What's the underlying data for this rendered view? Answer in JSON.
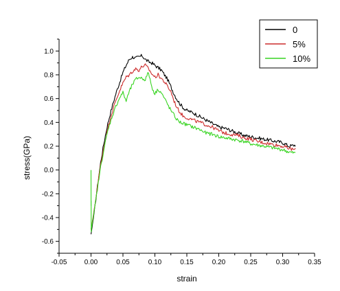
{
  "chart_data": {
    "type": "line",
    "title": "",
    "xlabel": "strain",
    "ylabel": "stress(GPa)",
    "xlim": [
      -0.05,
      0.35
    ],
    "ylim": [
      -0.7,
      1.1
    ],
    "xticks": [
      -0.05,
      0.0,
      0.05,
      0.1,
      0.15,
      0.2,
      0.25,
      0.3,
      0.35
    ],
    "xtick_labels": [
      "-0.05",
      "0.00",
      "0.05",
      "0.10",
      "0.15",
      "0.20",
      "0.25",
      "0.30",
      "0.35"
    ],
    "yticks": [
      -0.6,
      -0.4,
      -0.2,
      0.0,
      0.2,
      0.4,
      0.6,
      0.8,
      1.0
    ],
    "ytick_labels": [
      "-0.6",
      "-0.4",
      "-0.2",
      "0.0",
      "0.2",
      "0.4",
      "0.6",
      "0.8",
      "1.0"
    ],
    "grid": false,
    "legend_position": "top-right",
    "series": [
      {
        "name": "0",
        "color": "#000000",
        "x": [
          0.0,
          0.005,
          0.01,
          0.015,
          0.02,
          0.025,
          0.03,
          0.035,
          0.04,
          0.045,
          0.05,
          0.055,
          0.06,
          0.065,
          0.07,
          0.075,
          0.08,
          0.085,
          0.09,
          0.095,
          0.1,
          0.105,
          0.11,
          0.115,
          0.12,
          0.125,
          0.13,
          0.135,
          0.14,
          0.145,
          0.15,
          0.155,
          0.16,
          0.17,
          0.18,
          0.19,
          0.2,
          0.21,
          0.22,
          0.23,
          0.24,
          0.25,
          0.26,
          0.27,
          0.28,
          0.29,
          0.3,
          0.31,
          0.32
        ],
        "y": [
          -0.54,
          -0.36,
          -0.14,
          0.06,
          0.22,
          0.36,
          0.47,
          0.57,
          0.66,
          0.74,
          0.82,
          0.88,
          0.93,
          0.95,
          0.94,
          0.95,
          0.96,
          0.93,
          0.91,
          0.9,
          0.88,
          0.86,
          0.84,
          0.8,
          0.76,
          0.7,
          0.64,
          0.59,
          0.55,
          0.52,
          0.5,
          0.49,
          0.48,
          0.45,
          0.42,
          0.39,
          0.36,
          0.35,
          0.33,
          0.31,
          0.29,
          0.28,
          0.27,
          0.26,
          0.25,
          0.24,
          0.23,
          0.2,
          0.21
        ]
      },
      {
        "name": "5%",
        "color": "#cc2a2a",
        "x": [
          0.0,
          0.005,
          0.01,
          0.015,
          0.02,
          0.025,
          0.03,
          0.035,
          0.04,
          0.045,
          0.05,
          0.055,
          0.06,
          0.065,
          0.07,
          0.075,
          0.08,
          0.085,
          0.09,
          0.095,
          0.1,
          0.105,
          0.11,
          0.115,
          0.12,
          0.125,
          0.13,
          0.135,
          0.14,
          0.145,
          0.15,
          0.155,
          0.16,
          0.17,
          0.18,
          0.19,
          0.2,
          0.21,
          0.22,
          0.23,
          0.24,
          0.25,
          0.26,
          0.27,
          0.28,
          0.29,
          0.3,
          0.31,
          0.32
        ],
        "y": [
          -0.5,
          -0.34,
          -0.14,
          0.04,
          0.19,
          0.32,
          0.43,
          0.52,
          0.6,
          0.67,
          0.73,
          0.78,
          0.8,
          0.83,
          0.85,
          0.84,
          0.87,
          0.88,
          0.85,
          0.81,
          0.78,
          0.8,
          0.77,
          0.74,
          0.7,
          0.66,
          0.58,
          0.52,
          0.48,
          0.45,
          0.44,
          0.43,
          0.42,
          0.4,
          0.38,
          0.36,
          0.33,
          0.31,
          0.3,
          0.29,
          0.27,
          0.26,
          0.24,
          0.23,
          0.22,
          0.21,
          0.2,
          0.18,
          0.17
        ]
      },
      {
        "name": "10%",
        "color": "#37d421",
        "x": [
          0.0,
          0.0001,
          0.0002,
          0.0003,
          0.001,
          0.005,
          0.01,
          0.015,
          0.02,
          0.025,
          0.03,
          0.035,
          0.04,
          0.045,
          0.05,
          0.055,
          0.06,
          0.065,
          0.07,
          0.075,
          0.08,
          0.085,
          0.09,
          0.095,
          0.1,
          0.105,
          0.11,
          0.115,
          0.12,
          0.125,
          0.13,
          0.135,
          0.14,
          0.15,
          0.16,
          0.17,
          0.18,
          0.19,
          0.2,
          0.21,
          0.22,
          0.23,
          0.24,
          0.25,
          0.26,
          0.27,
          0.28,
          0.29,
          0.3,
          0.31,
          0.32
        ],
        "y": [
          0.0,
          -0.3,
          -0.26,
          -0.52,
          -0.48,
          -0.35,
          -0.16,
          0.02,
          0.17,
          0.3,
          0.4,
          0.48,
          0.55,
          0.61,
          0.65,
          0.58,
          0.66,
          0.72,
          0.76,
          0.78,
          0.77,
          0.76,
          0.82,
          0.7,
          0.64,
          0.68,
          0.65,
          0.6,
          0.55,
          0.5,
          0.46,
          0.42,
          0.4,
          0.38,
          0.36,
          0.34,
          0.31,
          0.3,
          0.28,
          0.27,
          0.26,
          0.25,
          0.24,
          0.22,
          0.21,
          0.2,
          0.19,
          0.18,
          0.17,
          0.15,
          0.14
        ]
      }
    ]
  }
}
